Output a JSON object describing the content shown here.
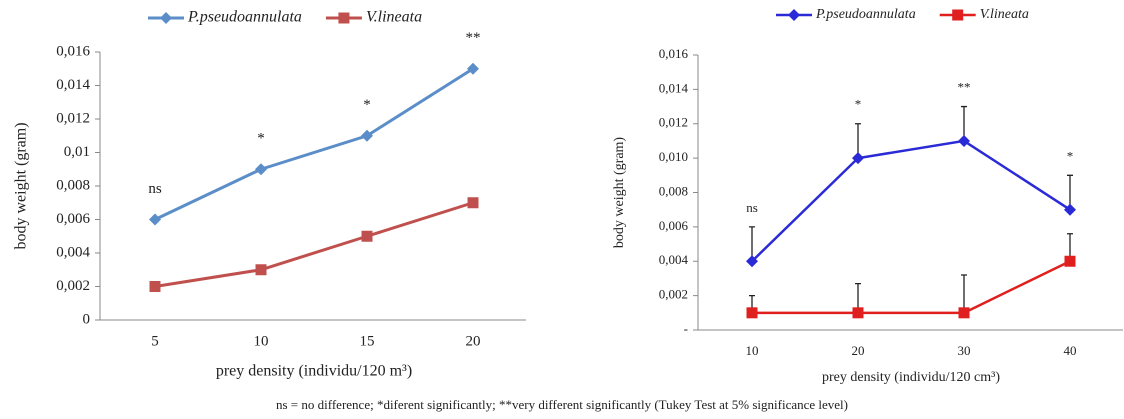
{
  "chart_data": [
    {
      "type": "line",
      "categories": [
        "5",
        "10",
        "15",
        "20"
      ],
      "series": [
        {
          "name": "P.pseudoannulata",
          "color": "#5b8ec8",
          "marker": "diamond",
          "values": [
            0.006,
            0.009,
            0.011,
            0.015
          ]
        },
        {
          "name": "V.lineata",
          "color": "#c0504d",
          "marker": "square",
          "values": [
            0.002,
            0.003,
            0.005,
            0.007
          ]
        }
      ],
      "annotations": [
        "ns",
        "*",
        "*",
        "**"
      ],
      "ylim": [
        0,
        0.016
      ],
      "yticks": [
        0,
        {
          "value": 0.002,
          "label": "0,002"
        },
        {
          "value": 0.004,
          "label": "0,004"
        },
        {
          "value": 0.006,
          "label": "0,006"
        },
        {
          "value": 0.008,
          "label": "0,008"
        },
        {
          "value": 0.01,
          "label": "0,01"
        },
        {
          "value": 0.012,
          "label": "0,012"
        },
        {
          "value": 0.014,
          "label": "0,014"
        },
        {
          "value": 0.016,
          "label": "0,016"
        }
      ],
      "x_label": "prey density (individu/120 m³)",
      "y_label": "body weight  (gram)",
      "legend": "top"
    },
    {
      "type": "line",
      "categories": [
        "10",
        "20",
        "30",
        "40"
      ],
      "series": [
        {
          "name": "P.pseudoannulata",
          "color": "#2a2ad6",
          "marker": "diamond",
          "values": [
            0.004,
            0.01,
            0.011,
            0.007
          ],
          "errors": [
            0.002,
            0.002,
            0.002,
            0.002
          ]
        },
        {
          "name": "V.lineata",
          "color": "#e0201e",
          "marker": "square",
          "values": [
            0.001,
            0.001,
            0.001,
            0.004
          ],
          "errors": [
            0.001,
            0.0017,
            0.0022,
            0.0016
          ]
        }
      ],
      "annotations": [
        "ns",
        "*",
        "**",
        "*"
      ],
      "ylim": [
        0,
        0.016
      ],
      "yticks": [
        {
          "value": 0,
          "label": "-"
        },
        {
          "value": 0.002,
          "label": "0,002"
        },
        {
          "value": 0.004,
          "label": "0,004"
        },
        {
          "value": 0.006,
          "label": "0,006"
        },
        {
          "value": 0.008,
          "label": "0,008"
        },
        {
          "value": 0.01,
          "label": "0,010"
        },
        {
          "value": 0.012,
          "label": "0,012"
        },
        {
          "value": 0.014,
          "label": "0,014"
        },
        {
          "value": 0.016,
          "label": "0,016"
        }
      ],
      "x_label": "prey density (individu/120 cm³)",
      "y_label": "body weight (gram)",
      "legend": "top"
    }
  ],
  "caption": "ns = no difference; *diferent significantly; **very different significantly (Tukey Test at 5% significance level)"
}
